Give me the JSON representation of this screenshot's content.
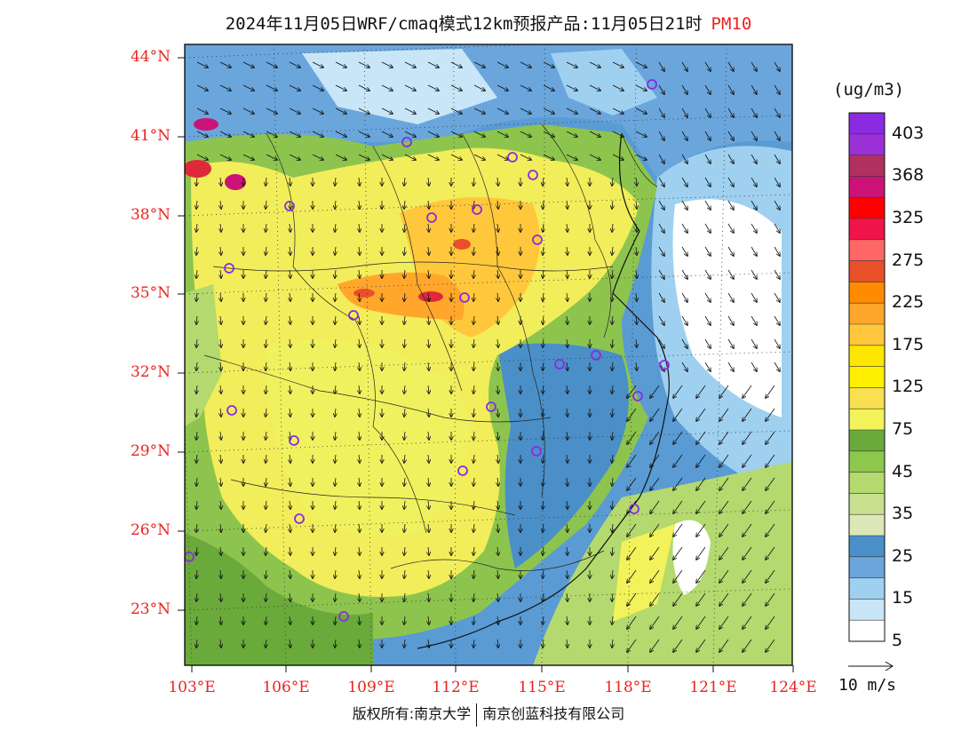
{
  "title": {
    "main": "2024年11月05日WRF/cmaq模式12km预报产品:11月05日21时",
    "pollutant": "PM10"
  },
  "axes": {
    "lat_labels": [
      "44°N",
      "41°N",
      "38°N",
      "35°N",
      "32°N",
      "29°N",
      "26°N",
      "23°N"
    ],
    "lon_labels": [
      "103°E",
      "106°E",
      "109°E",
      "112°E",
      "115°E",
      "118°E",
      "121°E",
      "124°E"
    ]
  },
  "colorbar": {
    "unit": "(ug/m3)",
    "labels": [
      "403",
      "368",
      "325",
      "275",
      "225",
      "175",
      "125",
      "75",
      "45",
      "35",
      "25",
      "15",
      "5"
    ],
    "colors": [
      "#8a2be2",
      "#9b30d6",
      "#b03060",
      "#cc1277",
      "#ff0000",
      "#f0144b",
      "#ff6666",
      "#e8502a",
      "#ff8c00",
      "#ffa62b",
      "#ffc83c",
      "#ffe600",
      "#fff000",
      "#f8e050",
      "#f2f25a",
      "#6aaa3a",
      "#8cc84b",
      "#b4d96e",
      "#c9e08f",
      "#dde8b8",
      "#4a8fc7",
      "#6aa6dc",
      "#9fd0f0",
      "#c8e6f8",
      "#ffffff"
    ]
  },
  "vector_scale": {
    "label": "10  m/s"
  },
  "footer": {
    "left": "版权所有:南京大学",
    "right": "南京创蓝科技有限公司"
  },
  "map": {
    "pollution_color": "#f2ed5a",
    "land_clean_color": "#8dc44e",
    "sea_color": "#a8d8f2",
    "hotspot_color": "#e0283c",
    "city_marker_color": "#8a2be2",
    "city_count": 24
  }
}
